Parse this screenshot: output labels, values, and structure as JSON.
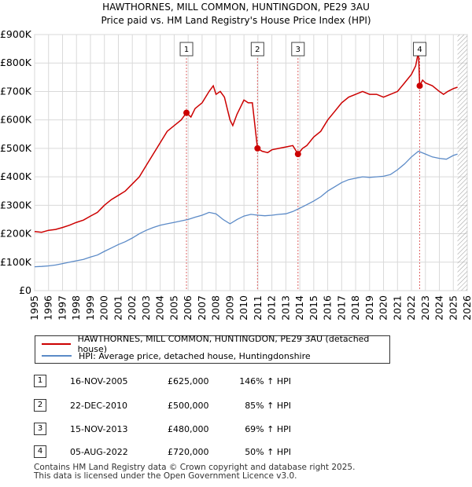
{
  "chart_data": {
    "type": "line",
    "title": "HAWTHORNES, MILL COMMON, HUNTINGDON, PE29 3AU",
    "subtitle": "Price paid vs. HM Land Registry's House Price Index (HPI)",
    "xlim": [
      1995,
      2026
    ],
    "ylim": [
      0,
      900000
    ],
    "x_ticks": [
      "1995",
      "1996",
      "1997",
      "1998",
      "1999",
      "2000",
      "2001",
      "2002",
      "2003",
      "2004",
      "2005",
      "2006",
      "2007",
      "2008",
      "2009",
      "2010",
      "2011",
      "2012",
      "2013",
      "2014",
      "2015",
      "2016",
      "2017",
      "2018",
      "2019",
      "2020",
      "2021",
      "2022",
      "2023",
      "2024",
      "2025",
      "2026"
    ],
    "y_ticks": [
      {
        "value": 0,
        "label": "£0"
      },
      {
        "value": 100000,
        "label": "£100K"
      },
      {
        "value": 200000,
        "label": "£200K"
      },
      {
        "value": 300000,
        "label": "£300K"
      },
      {
        "value": 400000,
        "label": "£400K"
      },
      {
        "value": 500000,
        "label": "£500K"
      },
      {
        "value": 600000,
        "label": "£600K"
      },
      {
        "value": 700000,
        "label": "£700K"
      },
      {
        "value": 800000,
        "label": "£800K"
      },
      {
        "value": 900000,
        "label": "£900K"
      }
    ],
    "grid": true,
    "hatched_region_from": 2025.3,
    "series": [
      {
        "name": "HAWTHORNES, MILL COMMON, HUNTINGDON, PE29 3AU (detached house)",
        "color": "#cc0000",
        "x": [
          1995.0,
          1995.5,
          1996.0,
          1996.5,
          1997.0,
          1997.5,
          1998.0,
          1998.5,
          1999.0,
          1999.5,
          2000.0,
          2000.5,
          2001.0,
          2001.5,
          2002.0,
          2002.5,
          2003.0,
          2003.5,
          2004.0,
          2004.5,
          2005.0,
          2005.5,
          2005.88,
          2006.2,
          2006.5,
          2007.0,
          2007.5,
          2007.8,
          2008.0,
          2008.3,
          2008.6,
          2009.0,
          2009.2,
          2009.5,
          2009.8,
          2010.0,
          2010.3,
          2010.6,
          2010.97,
          2011.3,
          2011.7,
          2012.0,
          2012.5,
          2013.0,
          2013.5,
          2013.87,
          2014.2,
          2014.5,
          2015.0,
          2015.5,
          2016.0,
          2016.5,
          2017.0,
          2017.5,
          2018.0,
          2018.5,
          2019.0,
          2019.5,
          2020.0,
          2020.5,
          2021.0,
          2021.5,
          2022.0,
          2022.3,
          2022.5,
          2022.59,
          2022.8,
          2023.0,
          2023.5,
          2024.0,
          2024.3,
          2024.6,
          2025.0,
          2025.3
        ],
        "values": [
          208000,
          205000,
          212000,
          215000,
          222000,
          230000,
          240000,
          248000,
          262000,
          275000,
          300000,
          320000,
          335000,
          350000,
          375000,
          400000,
          440000,
          480000,
          520000,
          560000,
          580000,
          600000,
          625000,
          610000,
          640000,
          660000,
          700000,
          720000,
          690000,
          700000,
          680000,
          600000,
          580000,
          620000,
          650000,
          670000,
          660000,
          660000,
          500000,
          490000,
          485000,
          495000,
          500000,
          505000,
          510000,
          480000,
          500000,
          510000,
          540000,
          560000,
          600000,
          630000,
          660000,
          680000,
          690000,
          700000,
          690000,
          690000,
          680000,
          690000,
          700000,
          730000,
          760000,
          790000,
          840000,
          720000,
          740000,
          730000,
          720000,
          700000,
          690000,
          700000,
          710000,
          715000
        ]
      },
      {
        "name": "HPI: Average price, detached house, Huntingdonshire",
        "color": "#5b8ac7",
        "x": [
          1995.0,
          1995.5,
          1996.0,
          1996.5,
          1997.0,
          1997.5,
          1998.0,
          1998.5,
          1999.0,
          1999.5,
          2000.0,
          2000.5,
          2001.0,
          2001.5,
          2002.0,
          2002.5,
          2003.0,
          2003.5,
          2004.0,
          2004.5,
          2005.0,
          2005.5,
          2006.0,
          2006.5,
          2007.0,
          2007.5,
          2008.0,
          2008.5,
          2009.0,
          2009.5,
          2010.0,
          2010.5,
          2011.0,
          2011.5,
          2012.0,
          2012.5,
          2013.0,
          2013.5,
          2014.0,
          2014.5,
          2015.0,
          2015.5,
          2016.0,
          2016.5,
          2017.0,
          2017.5,
          2018.0,
          2018.5,
          2019.0,
          2019.5,
          2020.0,
          2020.5,
          2021.0,
          2021.5,
          2022.0,
          2022.5,
          2023.0,
          2023.5,
          2024.0,
          2024.5,
          2025.0,
          2025.3
        ],
        "values": [
          84000,
          85000,
          87000,
          90000,
          95000,
          100000,
          105000,
          110000,
          118000,
          125000,
          138000,
          150000,
          162000,
          172000,
          185000,
          200000,
          212000,
          222000,
          230000,
          235000,
          240000,
          245000,
          250000,
          258000,
          265000,
          275000,
          270000,
          250000,
          235000,
          250000,
          262000,
          268000,
          265000,
          263000,
          265000,
          268000,
          270000,
          278000,
          290000,
          302000,
          315000,
          330000,
          350000,
          365000,
          380000,
          390000,
          395000,
          400000,
          398000,
          400000,
          402000,
          408000,
          425000,
          445000,
          470000,
          490000,
          480000,
          470000,
          465000,
          462000,
          475000,
          480000
        ]
      }
    ],
    "markers": [
      {
        "label": "1",
        "x": 2005.88,
        "value": 625000
      },
      {
        "label": "2",
        "x": 2010.97,
        "value": 500000
      },
      {
        "label": "3",
        "x": 2013.87,
        "value": 480000
      },
      {
        "label": "4",
        "x": 2022.59,
        "value": 720000
      }
    ]
  },
  "legend": {
    "property_label": "HAWTHORNES, MILL COMMON, HUNTINGDON, PE29 3AU (detached house)",
    "hpi_label": "HPI: Average price, detached house, Huntingdonshire"
  },
  "transactions": [
    {
      "num": "1",
      "date": "16-NOV-2005",
      "price": "£625,000",
      "hpi": "146% ↑ HPI"
    },
    {
      "num": "2",
      "date": "22-DEC-2010",
      "price": "£500,000",
      "hpi": "85% ↑ HPI"
    },
    {
      "num": "3",
      "date": "15-NOV-2013",
      "price": "£480,000",
      "hpi": "69% ↑ HPI"
    },
    {
      "num": "4",
      "date": "05-AUG-2022",
      "price": "£720,000",
      "hpi": "50% ↑ HPI"
    }
  ],
  "footer": {
    "line1": "Contains HM Land Registry data © Crown copyright and database right 2025.",
    "line2": "This data is licensed under the Open Government Licence v3.0."
  }
}
